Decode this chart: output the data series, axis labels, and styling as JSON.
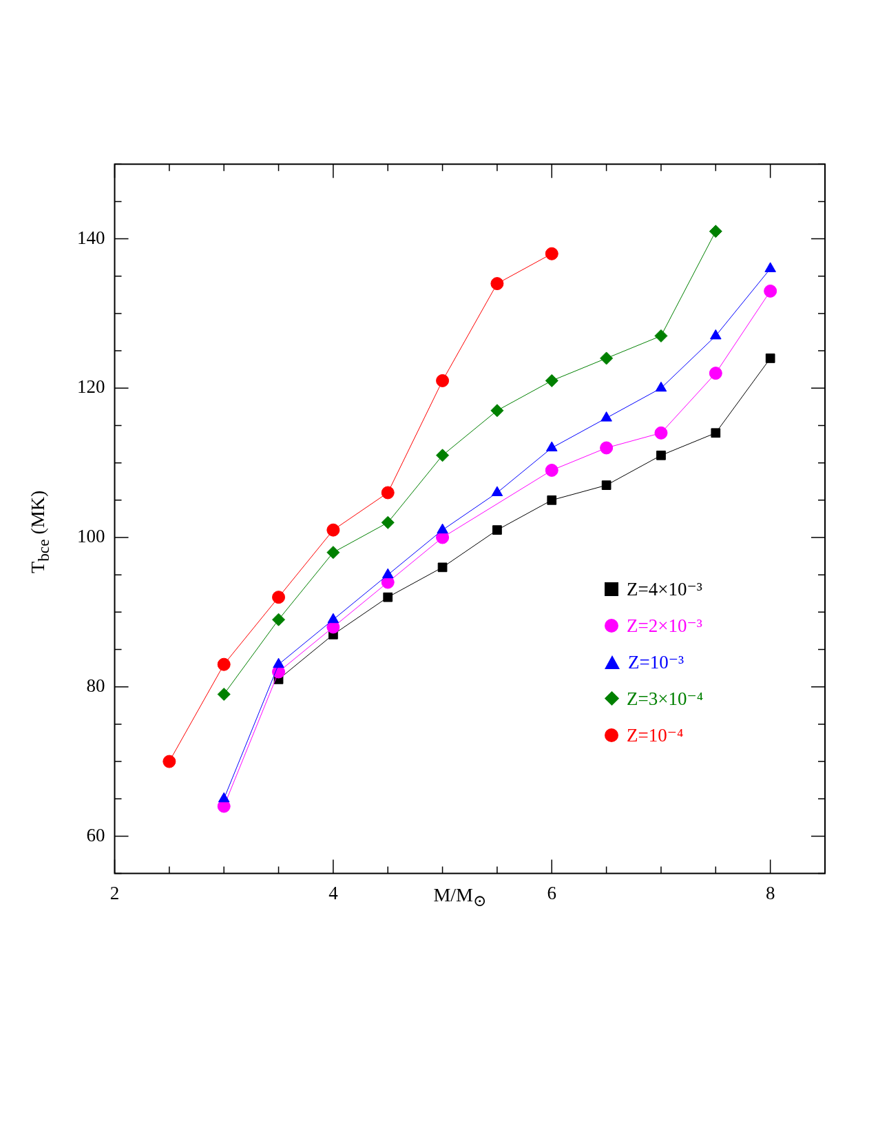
{
  "chart_data": {
    "type": "line",
    "xlabel": "M/M$_{⊙}$",
    "ylabel": "T$_{bce}$ (MK)",
    "xlim": [
      2,
      8.5
    ],
    "xticks": [
      2,
      {
        "value": 2.5,
        "label": null
      },
      {
        "value": 3,
        "label": null
      },
      {
        "value": 3.5,
        "label": null
      },
      4,
      {
        "value": 4.5,
        "label": null
      },
      {
        "value": 5,
        "label": null
      },
      {
        "value": 5.5,
        "label": null
      },
      6,
      {
        "value": 6.5,
        "label": null
      },
      {
        "value": 7,
        "label": null
      },
      {
        "value": 7.5,
        "label": null
      },
      8
    ],
    "ylim": [
      55,
      150
    ],
    "yticks": [
      {
        "value": 55,
        "label": null
      },
      60,
      {
        "value": 65,
        "label": null
      },
      {
        "value": 70,
        "label": null
      },
      {
        "value": 75,
        "label": null
      },
      80,
      {
        "value": 85,
        "label": null
      },
      {
        "value": 90,
        "label": null
      },
      {
        "value": 95,
        "label": null
      },
      100,
      {
        "value": 105,
        "label": null
      },
      {
        "value": 110,
        "label": null
      },
      {
        "value": 115,
        "label": null
      },
      120,
      {
        "value": 125,
        "label": null
      },
      {
        "value": 130,
        "label": null
      },
      {
        "value": 135,
        "label": null
      },
      140,
      {
        "value": 145,
        "label": null
      },
      {
        "value": 150,
        "label": null
      }
    ],
    "grid": false,
    "legend": "bottom right",
    "line_style": "solid",
    "series": [
      {
        "name": "Z=4×10⁻³",
        "color": "#000000",
        "marker": "square",
        "x": [
          3.5,
          4,
          4.5,
          5,
          5.5,
          6,
          6.5,
          7,
          7.5,
          8
        ],
        "values": [
          81,
          87,
          92,
          96,
          101,
          105,
          107,
          111,
          114,
          124
        ]
      },
      {
        "name": "Z=2×10⁻³",
        "color": "#ff00ff",
        "marker": "circle",
        "x": [
          3,
          3.5,
          4,
          4.5,
          5,
          6,
          6.5,
          7,
          7.5,
          8
        ],
        "values": [
          64,
          82,
          88,
          94,
          100,
          109,
          112,
          114,
          122,
          133
        ]
      },
      {
        "name": "Z=10⁻³",
        "color": "#0000ff",
        "marker": "triangle",
        "x": [
          3,
          3.5,
          4,
          4.5,
          5,
          5.5,
          6,
          6.5,
          7,
          7.5,
          8
        ],
        "values": [
          65,
          83,
          89,
          95,
          101,
          106,
          112,
          116,
          120,
          127,
          136
        ]
      },
      {
        "name": "Z=3×10⁻⁴",
        "color": "#008000",
        "marker": "diamond",
        "x": [
          3,
          3.5,
          4,
          4.5,
          5,
          5.5,
          6,
          6.5,
          7,
          7.5
        ],
        "values": [
          79,
          89,
          98,
          102,
          111,
          117,
          121,
          124,
          127,
          141
        ]
      },
      {
        "name": "Z=10⁻⁴",
        "color": "#ff0000",
        "marker": "circle",
        "x": [
          2.5,
          3,
          3.5,
          4,
          4.5,
          5,
          5.5,
          6
        ],
        "values": [
          70,
          83,
          92,
          101,
          106,
          121,
          134,
          138
        ]
      }
    ]
  }
}
